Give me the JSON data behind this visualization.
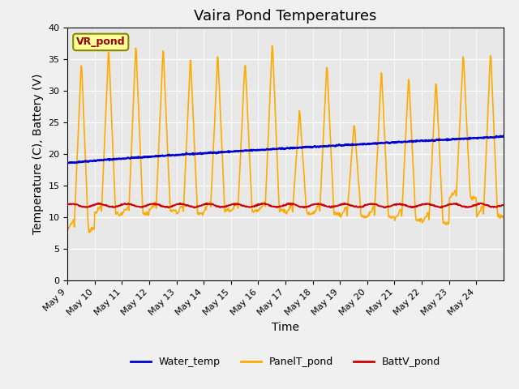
{
  "title": "Vaira Pond Temperatures",
  "xlabel": "Time",
  "ylabel": "Temperature (C), Battery (V)",
  "ylim": [
    0,
    40
  ],
  "yticks": [
    0,
    5,
    10,
    15,
    20,
    25,
    30,
    35,
    40
  ],
  "x_tick_labels": [
    "May 9",
    "May 10",
    "May 11",
    "May 12",
    "May 13",
    "May 14",
    "May 15",
    "May 16",
    "May 17",
    "May 18",
    "May 19",
    "May 20",
    "May 21",
    "May 22",
    "May 23",
    "May 24"
  ],
  "water_color": "#0000cc",
  "panel_color": "#ffaa00",
  "batt_color": "#cc0000",
  "bg_color": "#e8e8e8",
  "fig_bg_color": "#f0f0f0",
  "legend_box_color": "#ffff99",
  "legend_box_edge": "#888800",
  "legend_box_text": "#990000",
  "legend_box_label": "VR_pond",
  "water_label": "Water_temp",
  "panel_label": "PanelT_pond",
  "batt_label": "BattV_pond",
  "title_fontsize": 13,
  "axis_label_fontsize": 10,
  "tick_fontsize": 8,
  "legend_fontsize": 9,
  "panel_peaks": [
    35,
    37,
    37.5,
    37,
    35.5,
    36,
    35,
    38,
    27,
    34.5,
    25,
    33.5,
    32.5,
    32,
    36,
    36.5
  ],
  "panel_mins": [
    8,
    10.5,
    10.5,
    11,
    10.5,
    11,
    11,
    11,
    10.5,
    10.5,
    10,
    10,
    9.5,
    9,
    13,
    10
  ]
}
